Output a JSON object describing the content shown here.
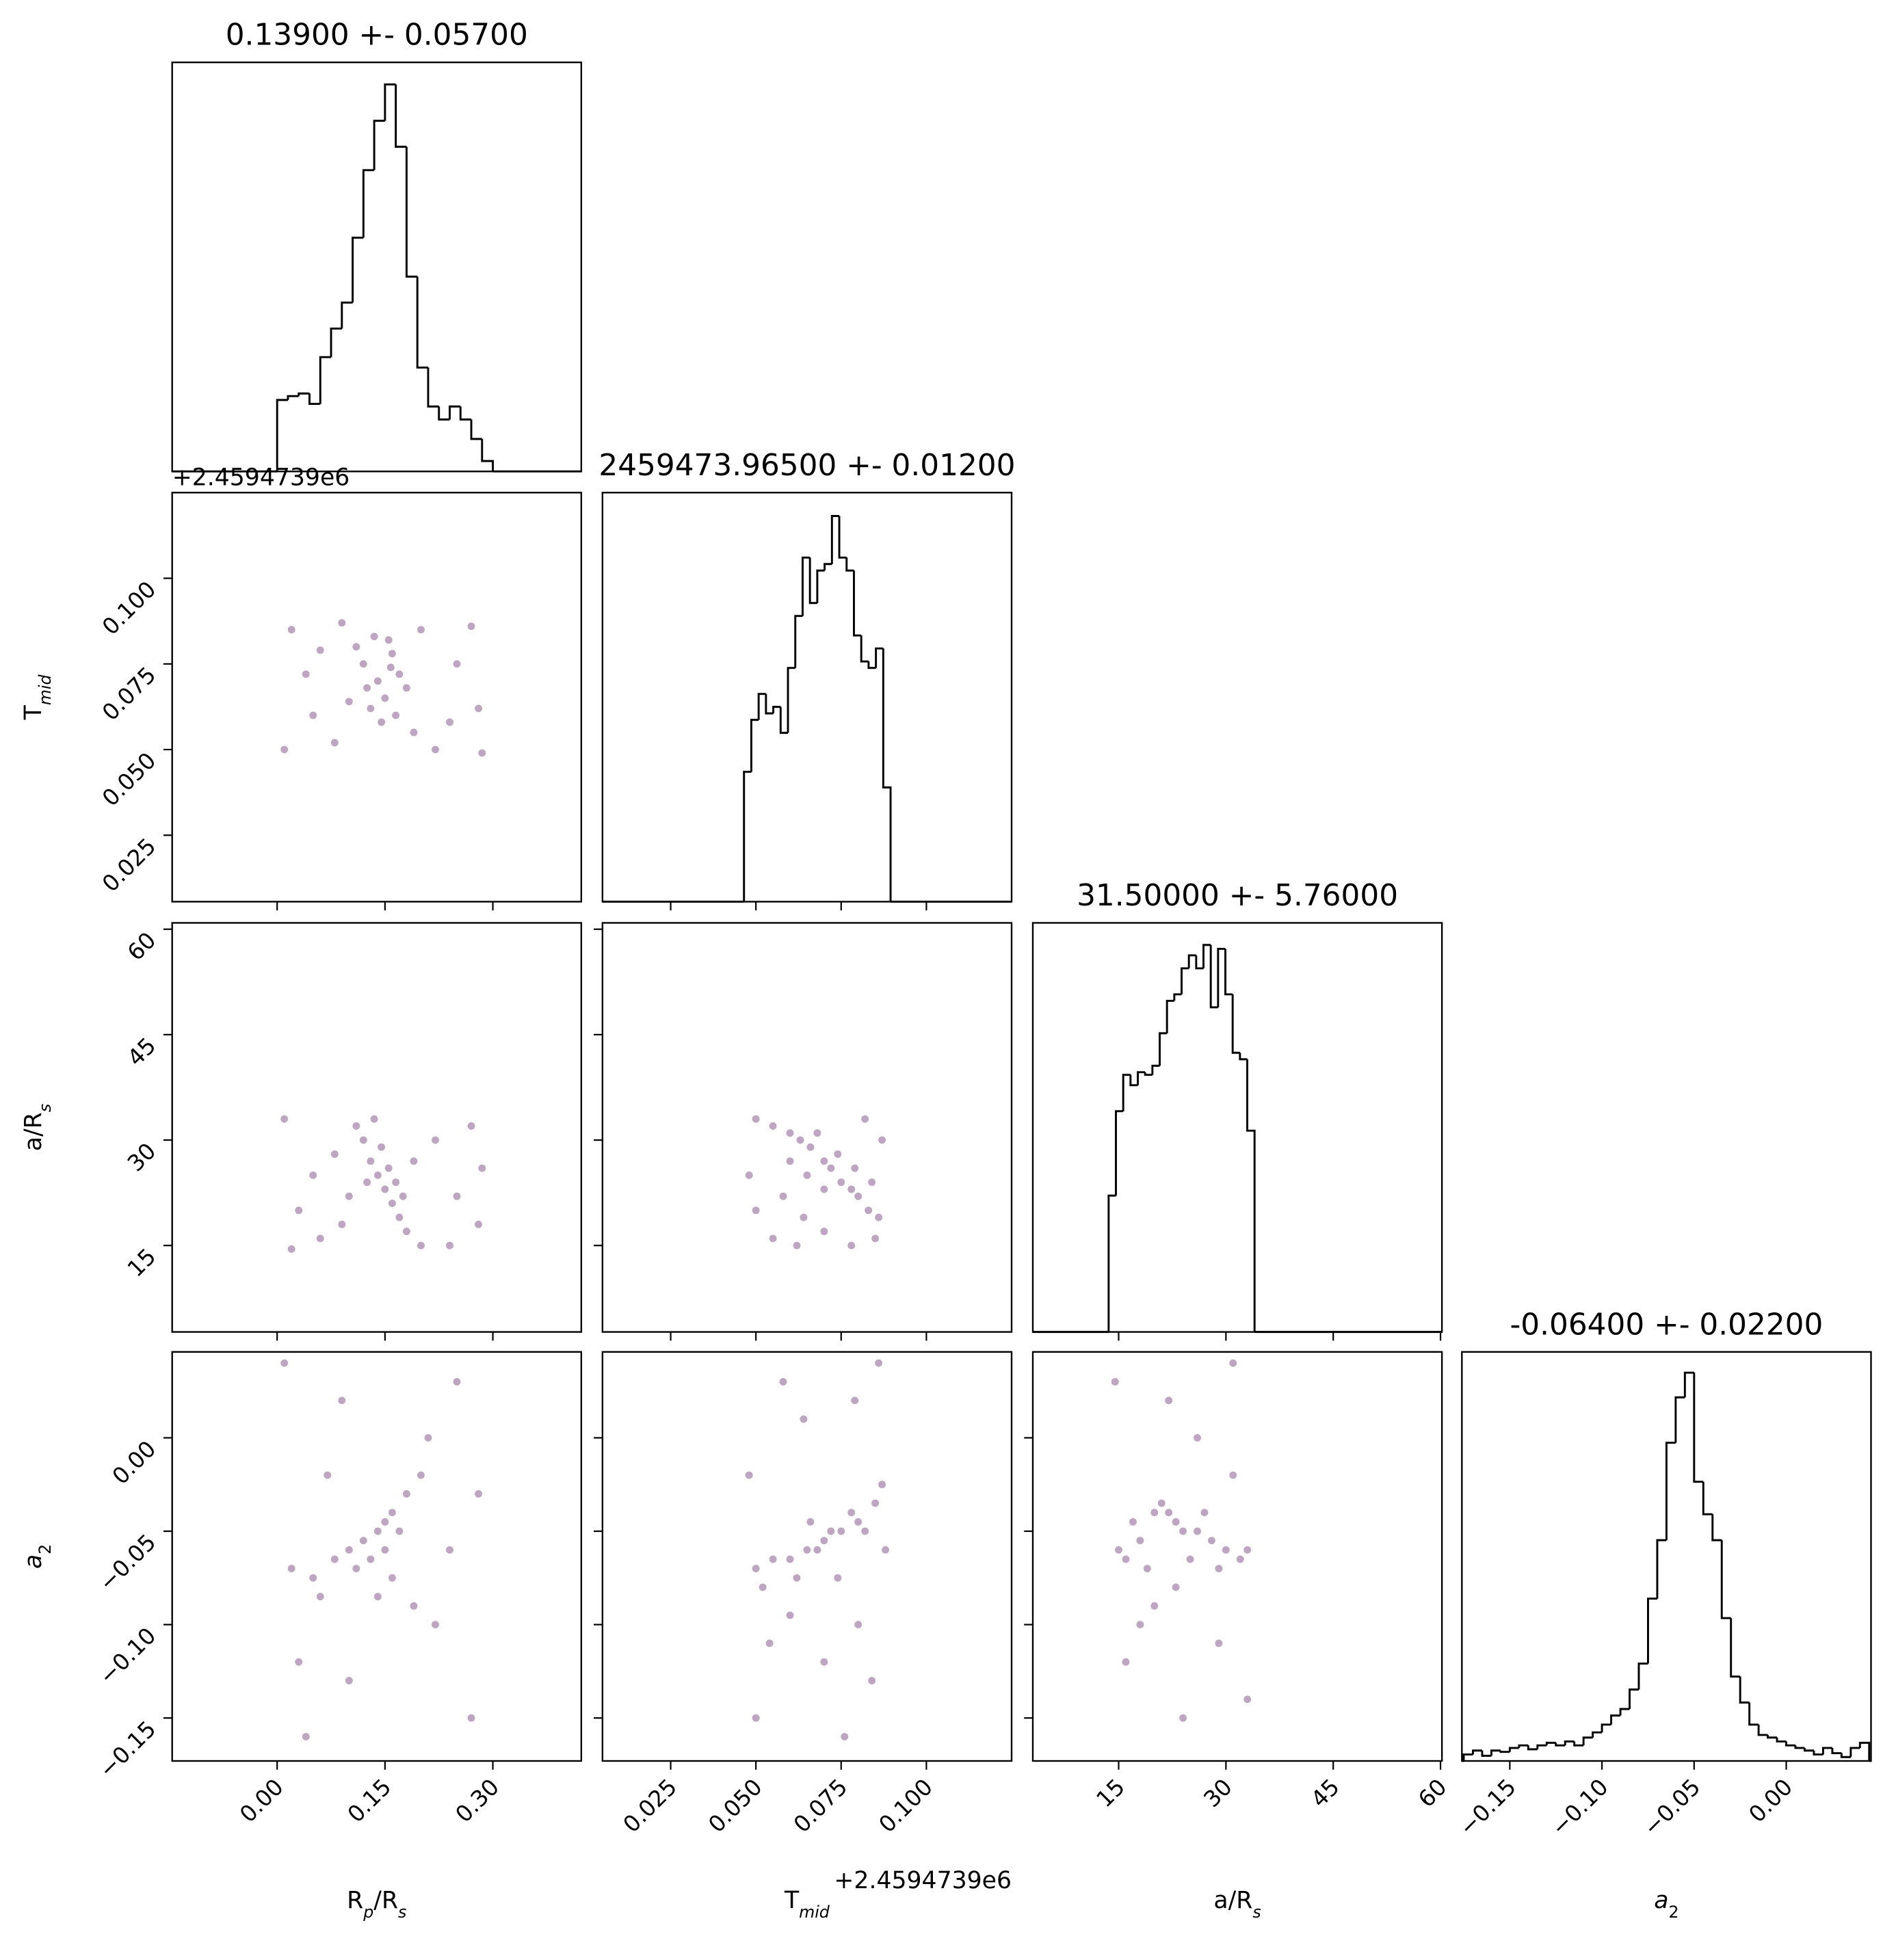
{
  "chart_data": [
    {
      "type": "histogram",
      "title": "0.13900 +- 0.05700",
      "xlim": [
        -0.146,
        0.423
      ],
      "ylim": [
        0,
        315
      ],
      "xticks": [],
      "xticklabels": false,
      "color": "#000000",
      "bins": [
        0,
        0.015,
        0.03,
        0.045,
        0.06,
        0.075,
        0.09,
        0.105,
        0.12,
        0.135,
        0.15,
        0.165,
        0.18,
        0.195,
        0.21,
        0.225,
        0.24,
        0.255,
        0.27,
        0.285,
        0.3
      ],
      "counts": [
        55,
        58,
        60,
        52,
        88,
        110,
        130,
        180,
        232,
        270,
        298,
        250,
        150,
        80,
        50,
        40,
        50,
        40,
        25,
        8
      ]
    },
    {
      "type": "scatter",
      "xlim": [
        -0.146,
        0.423
      ],
      "ylim": [
        0.0056,
        0.125
      ],
      "color": "#440154",
      "alpha": 0.35,
      "xticks": [
        0,
        0.15,
        0.3
      ],
      "xticklabels": false,
      "yticks": [
        {
          "value": 0.025,
          "label": "0.025"
        },
        {
          "value": 0.05,
          "label": "0.050"
        },
        {
          "value": 0.075,
          "label": "0.075"
        },
        {
          "value": 0.1,
          "label": "0.100"
        }
      ],
      "yticklabels": true,
      "y_offset": "+2.4594739e6",
      "ylabel": [
        {
          "text": "T",
          "sub": false,
          "italic": false
        },
        {
          "text": "mid",
          "sub": true,
          "italic": true
        }
      ],
      "points": [
        [
          0.02,
          0.085
        ],
        [
          0.05,
          0.06
        ],
        [
          0.08,
          0.052
        ],
        [
          0.12,
          0.075
        ],
        [
          0.14,
          0.07
        ],
        [
          0.15,
          0.065
        ],
        [
          0.16,
          0.078
        ],
        [
          0.13,
          0.062
        ],
        [
          0.17,
          0.072
        ],
        [
          0.155,
          0.082
        ],
        [
          0.11,
          0.08
        ],
        [
          0.145,
          0.058
        ],
        [
          0.18,
          0.068
        ],
        [
          0.125,
          0.068
        ],
        [
          0.165,
          0.06
        ],
        [
          0.2,
          0.085
        ],
        [
          0.22,
          0.05
        ],
        [
          0.25,
          0.075
        ],
        [
          0.28,
          0.062
        ],
        [
          0.27,
          0.086
        ],
        [
          0.01,
          0.05
        ],
        [
          0.04,
          0.072
        ],
        [
          0.09,
          0.087
        ],
        [
          0.19,
          0.055
        ],
        [
          0.24,
          0.058
        ],
        [
          0.06,
          0.079
        ],
        [
          0.135,
          0.083
        ],
        [
          0.285,
          0.049
        ],
        [
          0.1,
          0.064
        ],
        [
          0.158,
          0.074
        ]
      ]
    },
    {
      "type": "histogram",
      "title": "2459473.96500 +- 0.01200",
      "xlim": [
        0.005,
        0.125
      ],
      "ylim": [
        0,
        315
      ],
      "xticks": [
        0.025,
        0.05,
        0.075,
        0.1
      ],
      "xticklabels": false,
      "color": "#000000",
      "bins": [
        0.0465,
        0.04865,
        0.0508,
        0.05295,
        0.0551,
        0.05725,
        0.0594,
        0.06155,
        0.0637,
        0.06585,
        0.068,
        0.07015,
        0.0723,
        0.07445,
        0.0766,
        0.07875,
        0.0809,
        0.08305,
        0.0852,
        0.08735,
        0.0895
      ],
      "counts": [
        100,
        140,
        160,
        145,
        150,
        130,
        180,
        220,
        265,
        230,
        255,
        260,
        297,
        265,
        255,
        205,
        185,
        180,
        195,
        88
      ]
    },
    {
      "type": "scatter",
      "xlim": [
        -0.146,
        0.423
      ],
      "ylim": [
        2.7,
        60.9
      ],
      "color": "#440154",
      "alpha": 0.35,
      "xticks": [
        0,
        0.15,
        0.3
      ],
      "xticklabels": false,
      "yticks": [
        15,
        30,
        45,
        60
      ],
      "yticklabels": true,
      "ylabel": [
        {
          "text": "a/R",
          "sub": false,
          "italic": false
        },
        {
          "text": "s",
          "sub": true,
          "italic": true
        }
      ],
      "points": [
        [
          0.01,
          33
        ],
        [
          0.03,
          20
        ],
        [
          0.06,
          16
        ],
        [
          0.08,
          28
        ],
        [
          0.12,
          30
        ],
        [
          0.13,
          27
        ],
        [
          0.14,
          25
        ],
        [
          0.15,
          23
        ],
        [
          0.16,
          21
        ],
        [
          0.17,
          19
        ],
        [
          0.145,
          29
        ],
        [
          0.155,
          26
        ],
        [
          0.125,
          24
        ],
        [
          0.165,
          24
        ],
        [
          0.18,
          17
        ],
        [
          0.11,
          32
        ],
        [
          0.2,
          15
        ],
        [
          0.22,
          30
        ],
        [
          0.25,
          22
        ],
        [
          0.28,
          18
        ],
        [
          0.27,
          32
        ],
        [
          0.05,
          25
        ],
        [
          0.09,
          18
        ],
        [
          0.19,
          27
        ],
        [
          0.24,
          15
        ],
        [
          0.02,
          14.5
        ],
        [
          0.285,
          26
        ],
        [
          0.135,
          33
        ],
        [
          0.1,
          22
        ],
        [
          0.175,
          22
        ]
      ]
    },
    {
      "type": "scatter",
      "xlim": [
        0.005,
        0.125
      ],
      "ylim": [
        2.7,
        60.9
      ],
      "color": "#440154",
      "alpha": 0.35,
      "xticks": [
        0.025,
        0.05,
        0.075,
        0.1
      ],
      "xticklabels": false,
      "yticks": [
        15,
        30,
        45,
        60
      ],
      "yticklabels": false,
      "points": [
        [
          0.05,
          33
        ],
        [
          0.055,
          32
        ],
        [
          0.06,
          31
        ],
        [
          0.063,
          30
        ],
        [
          0.066,
          29
        ],
        [
          0.07,
          27
        ],
        [
          0.072,
          26
        ],
        [
          0.075,
          24
        ],
        [
          0.078,
          23
        ],
        [
          0.08,
          22
        ],
        [
          0.083,
          20
        ],
        [
          0.086,
          19
        ],
        [
          0.068,
          31
        ],
        [
          0.074,
          28
        ],
        [
          0.079,
          26
        ],
        [
          0.084,
          24
        ],
        [
          0.06,
          27
        ],
        [
          0.065,
          25
        ],
        [
          0.07,
          23
        ],
        [
          0.05,
          20
        ],
        [
          0.055,
          16
        ],
        [
          0.062,
          15
        ],
        [
          0.07,
          17
        ],
        [
          0.078,
          15
        ],
        [
          0.085,
          16
        ],
        [
          0.048,
          25
        ],
        [
          0.087,
          30
        ],
        [
          0.058,
          22
        ],
        [
          0.082,
          33
        ],
        [
          0.064,
          19
        ]
      ]
    },
    {
      "type": "histogram",
      "title": "31.50000 +- 5.76000",
      "xlim": [
        3,
        60.2
      ],
      "ylim": [
        0,
        315
      ],
      "xticks": [
        15,
        30,
        45,
        60
      ],
      "xticklabels": false,
      "color": "#000000",
      "bins": [
        13.6,
        14.62,
        15.64,
        16.66,
        17.68,
        18.7,
        19.72,
        20.74,
        21.76,
        22.78,
        23.8,
        24.82,
        25.84,
        26.86,
        27.88,
        28.9,
        29.92,
        30.94,
        31.96,
        32.98,
        34.0
      ],
      "counts": [
        105,
        170,
        198,
        190,
        200,
        198,
        205,
        230,
        255,
        260,
        280,
        290,
        280,
        298,
        250,
        295,
        260,
        215,
        210,
        155
      ]
    },
    {
      "type": "scatter",
      "xlim": [
        -0.146,
        0.423
      ],
      "ylim": [
        -0.173,
        0.046
      ],
      "color": "#440154",
      "alpha": 0.35,
      "xticks": [
        {
          "value": 0,
          "label": "0.00"
        },
        {
          "value": 0.15,
          "label": "0.15"
        },
        {
          "value": 0.3,
          "label": "0.30"
        }
      ],
      "xticklabels": true,
      "yticks": [
        {
          "value": -0.15,
          "label": "−0.15"
        },
        {
          "value": -0.1,
          "label": "−0.10"
        },
        {
          "value": -0.05,
          "label": "−0.05"
        },
        {
          "value": 0,
          "label": "0.00"
        }
      ],
      "yticklabels": true,
      "xlabel": [
        {
          "text": "R",
          "sub": false,
          "italic": false
        },
        {
          "text": "p",
          "sub": true,
          "italic": true
        },
        {
          "text": "/R",
          "sub": false,
          "italic": false
        },
        {
          "text": "s",
          "sub": true,
          "italic": true
        }
      ],
      "ylabel": [
        {
          "text": "a",
          "sub": false,
          "italic": true
        },
        {
          "text": "2",
          "sub": true,
          "italic": false
        }
      ],
      "points": [
        [
          0.02,
          -0.07
        ],
        [
          0.05,
          -0.075
        ],
        [
          0.08,
          -0.065
        ],
        [
          0.1,
          -0.06
        ],
        [
          0.12,
          -0.055
        ],
        [
          0.14,
          -0.05
        ],
        [
          0.15,
          -0.045
        ],
        [
          0.16,
          -0.04
        ],
        [
          0.18,
          -0.03
        ],
        [
          0.2,
          -0.02
        ],
        [
          0.13,
          -0.065
        ],
        [
          0.15,
          -0.06
        ],
        [
          0.17,
          -0.05
        ],
        [
          0.11,
          -0.07
        ],
        [
          0.06,
          -0.085
        ],
        [
          0.09,
          0.02
        ],
        [
          0.03,
          -0.12
        ],
        [
          0.22,
          -0.1
        ],
        [
          0.25,
          0.03
        ],
        [
          0.27,
          -0.15
        ],
        [
          0.01,
          0.04
        ],
        [
          0.04,
          -0.16
        ],
        [
          0.19,
          -0.09
        ],
        [
          0.07,
          -0.02
        ],
        [
          0.24,
          -0.06
        ],
        [
          0.28,
          -0.03
        ],
        [
          0.1,
          -0.13
        ],
        [
          0.16,
          -0.075
        ],
        [
          0.14,
          -0.085
        ],
        [
          0.21,
          0.0
        ]
      ]
    },
    {
      "type": "scatter",
      "xlim": [
        0.005,
        0.125
      ],
      "ylim": [
        -0.173,
        0.046
      ],
      "color": "#440154",
      "alpha": 0.35,
      "xticks": [
        {
          "value": 0.025,
          "label": "0.025"
        },
        {
          "value": 0.05,
          "label": "0.050"
        },
        {
          "value": 0.075,
          "label": "0.075"
        },
        {
          "value": 0.1,
          "label": "0.100"
        }
      ],
      "xticklabels": true,
      "yticks": [
        -0.15,
        -0.1,
        -0.05,
        0
      ],
      "yticklabels": false,
      "x_offset": "+2.4594739e6",
      "xlabel": [
        {
          "text": "T",
          "sub": false,
          "italic": false
        },
        {
          "text": "mid",
          "sub": true,
          "italic": true
        }
      ],
      "points": [
        [
          0.05,
          -0.07
        ],
        [
          0.055,
          -0.065
        ],
        [
          0.06,
          -0.065
        ],
        [
          0.065,
          -0.06
        ],
        [
          0.07,
          -0.055
        ],
        [
          0.075,
          -0.05
        ],
        [
          0.08,
          -0.045
        ],
        [
          0.085,
          -0.035
        ],
        [
          0.087,
          -0.025
        ],
        [
          0.078,
          -0.04
        ],
        [
          0.068,
          -0.06
        ],
        [
          0.072,
          -0.05
        ],
        [
          0.082,
          -0.05
        ],
        [
          0.062,
          -0.075
        ],
        [
          0.052,
          -0.08
        ],
        [
          0.058,
          0.03
        ],
        [
          0.086,
          0.04
        ],
        [
          0.07,
          -0.12
        ],
        [
          0.05,
          -0.15
        ],
        [
          0.08,
          -0.1
        ],
        [
          0.064,
          0.01
        ],
        [
          0.076,
          -0.16
        ],
        [
          0.048,
          -0.02
        ],
        [
          0.084,
          -0.13
        ],
        [
          0.06,
          -0.095
        ],
        [
          0.074,
          -0.075
        ],
        [
          0.066,
          -0.045
        ],
        [
          0.088,
          -0.06
        ],
        [
          0.054,
          -0.11
        ],
        [
          0.079,
          0.02
        ]
      ]
    },
    {
      "type": "scatter",
      "xlim": [
        3,
        60.2
      ],
      "ylim": [
        -0.173,
        0.046
      ],
      "color": "#440154",
      "alpha": 0.35,
      "xticks": [
        15,
        30,
        45,
        60
      ],
      "xticklabels": true,
      "yticks": [
        -0.15,
        -0.1,
        -0.05,
        0
      ],
      "yticklabels": false,
      "xlabel": [
        {
          "text": "a/R",
          "sub": false,
          "italic": false
        },
        {
          "text": "s",
          "sub": true,
          "italic": true
        }
      ],
      "points": [
        [
          15,
          -0.06
        ],
        [
          16,
          -0.065
        ],
        [
          18,
          -0.055
        ],
        [
          20,
          -0.04
        ],
        [
          21,
          -0.035
        ],
        [
          22,
          -0.04
        ],
        [
          23,
          -0.045
        ],
        [
          24,
          -0.05
        ],
        [
          26,
          -0.05
        ],
        [
          28,
          -0.055
        ],
        [
          30,
          -0.06
        ],
        [
          32,
          -0.065
        ],
        [
          33,
          -0.06
        ],
        [
          19,
          -0.07
        ],
        [
          25,
          -0.065
        ],
        [
          27,
          -0.04
        ],
        [
          29,
          -0.07
        ],
        [
          17,
          -0.045
        ],
        [
          14.5,
          0.03
        ],
        [
          22,
          0.02
        ],
        [
          31,
          0.04
        ],
        [
          16,
          -0.12
        ],
        [
          24,
          -0.15
        ],
        [
          29,
          -0.11
        ],
        [
          20,
          -0.09
        ],
        [
          33,
          -0.14
        ],
        [
          26,
          0.0
        ],
        [
          18,
          -0.1
        ],
        [
          31,
          -0.02
        ],
        [
          23,
          -0.08
        ]
      ]
    },
    {
      "type": "histogram",
      "title": "-0.06400 +- 0.02200",
      "xlim": [
        -0.176,
        0.046
      ],
      "ylim": [
        0,
        315
      ],
      "color": "#000000",
      "xticks": [
        {
          "value": -0.15,
          "label": "−0.15"
        },
        {
          "value": -0.1,
          "label": "−0.10"
        },
        {
          "value": -0.05,
          "label": "−0.05"
        },
        {
          "value": 0,
          "label": "0.00"
        }
      ],
      "xticklabels": true,
      "xlabel": [
        {
          "text": "a",
          "sub": false,
          "italic": true
        },
        {
          "text": "2",
          "sub": true,
          "italic": false
        }
      ],
      "bins": [
        -0.175,
        -0.17,
        -0.165,
        -0.16,
        -0.155,
        -0.15,
        -0.145,
        -0.14,
        -0.135,
        -0.13,
        -0.125,
        -0.12,
        -0.115,
        -0.11,
        -0.105,
        -0.1,
        -0.095,
        -0.09,
        -0.085,
        -0.08,
        -0.075,
        -0.07,
        -0.065,
        -0.06,
        -0.055,
        -0.05,
        -0.045,
        -0.04,
        -0.035,
        -0.03,
        -0.025,
        -0.02,
        -0.015,
        -0.01,
        -0.005,
        0,
        0.005,
        0.01,
        0.015,
        0.02,
        0.025,
        0.03,
        0.035,
        0.04,
        0.045
      ],
      "counts": [
        5,
        8,
        4,
        8,
        7,
        10,
        12,
        9,
        12,
        14,
        12,
        15,
        12,
        18,
        22,
        28,
        35,
        40,
        55,
        75,
        125,
        170,
        245,
        280,
        299,
        215,
        190,
        170,
        110,
        65,
        45,
        28,
        20,
        18,
        15,
        12,
        10,
        8,
        5,
        10,
        6,
        3,
        10,
        14
      ]
    }
  ]
}
